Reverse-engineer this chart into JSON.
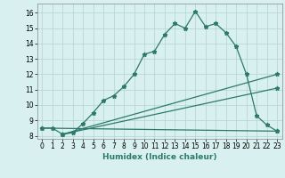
{
  "xlabel": "Humidex (Indice chaleur)",
  "bg_color": "#d9f0f0",
  "grid_color": "#b8d8d8",
  "line_color": "#2d7a6a",
  "xlim": [
    -0.5,
    23.5
  ],
  "ylim": [
    7.8,
    16.6
  ],
  "yticks": [
    8,
    9,
    10,
    11,
    12,
    13,
    14,
    15,
    16
  ],
  "xticks": [
    0,
    1,
    2,
    3,
    4,
    5,
    6,
    7,
    8,
    9,
    10,
    11,
    12,
    13,
    14,
    15,
    16,
    17,
    18,
    19,
    20,
    21,
    22,
    23
  ],
  "line1_x": [
    0,
    1,
    2,
    3,
    4,
    5,
    6,
    7,
    8,
    9,
    10,
    11,
    12,
    13,
    14,
    15,
    16,
    17,
    18,
    19,
    20,
    21,
    22,
    23
  ],
  "line1_y": [
    8.5,
    8.5,
    8.1,
    8.2,
    8.8,
    9.5,
    10.3,
    10.6,
    11.2,
    12.0,
    13.3,
    13.5,
    14.6,
    15.3,
    15.0,
    16.1,
    15.1,
    15.3,
    14.7,
    13.8,
    12.0,
    9.3,
    8.7,
    8.3
  ],
  "line2_x": [
    0,
    23
  ],
  "line2_y": [
    8.5,
    8.3
  ],
  "line3_x": [
    2,
    23
  ],
  "line3_y": [
    8.1,
    11.1
  ],
  "line4_x": [
    2,
    23
  ],
  "line4_y": [
    8.1,
    12.0
  ],
  "tick_fontsize": 5.5,
  "xlabel_fontsize": 6.5
}
